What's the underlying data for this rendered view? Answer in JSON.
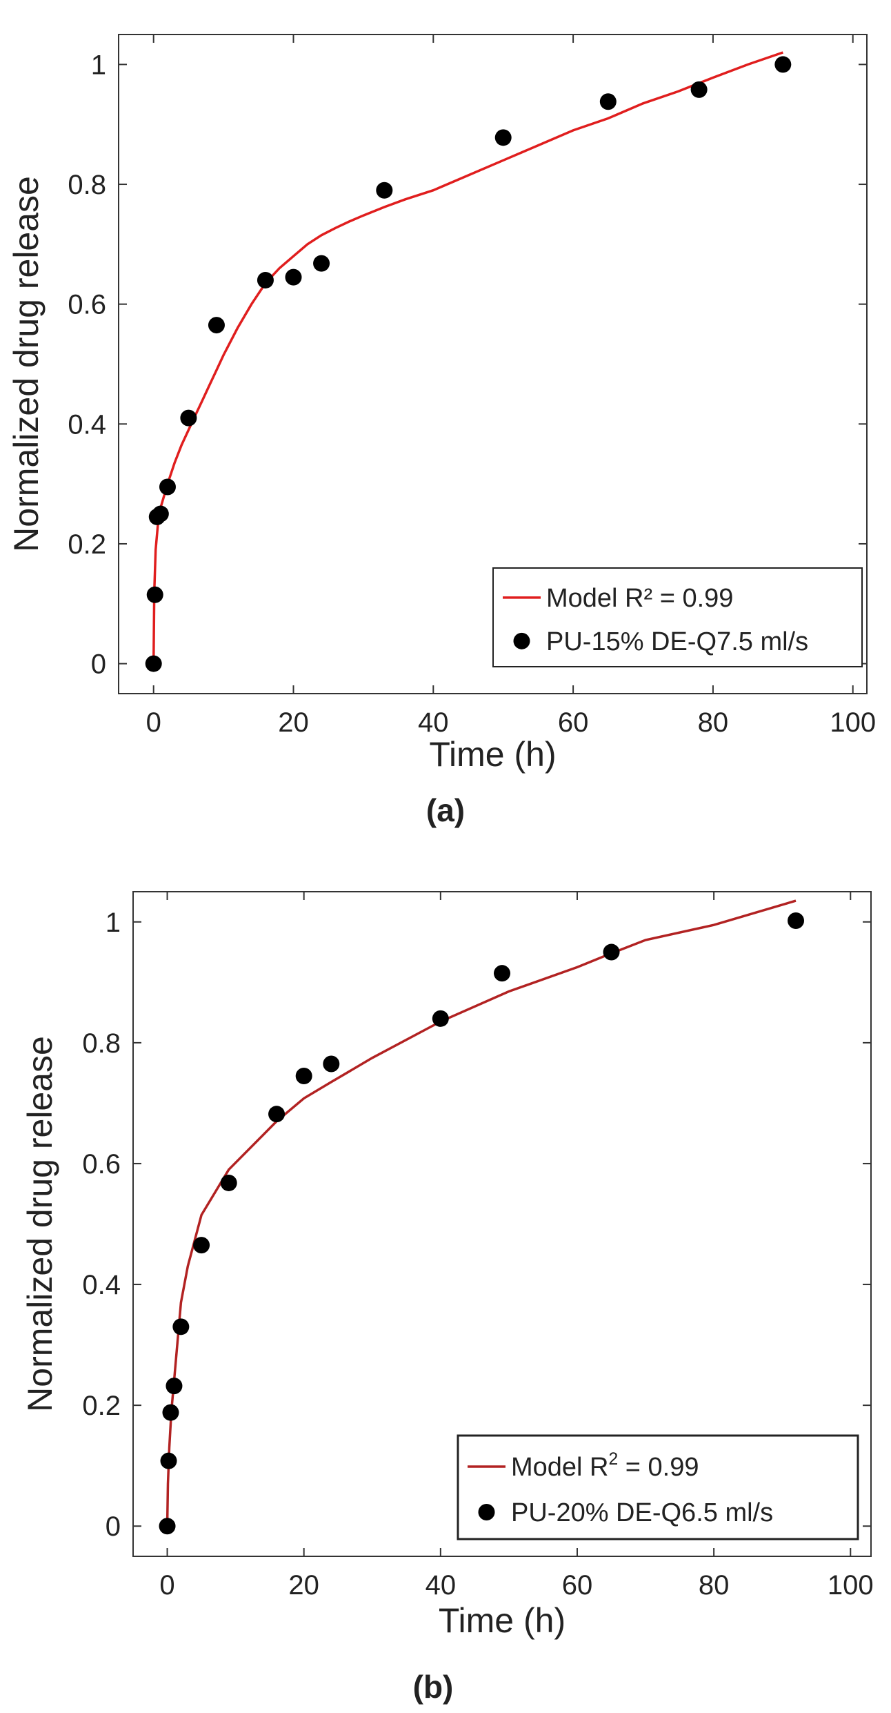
{
  "chart_data": [
    {
      "type": "scatter",
      "panel_label": "(a)",
      "xlabel": "Time (h)",
      "ylabel": "Normalized drug release",
      "xlim": [
        -5,
        102
      ],
      "ylim": [
        -0.05,
        1.05
      ],
      "xticks": [
        0,
        20,
        40,
        60,
        80,
        100
      ],
      "yticks": [
        0,
        0.2,
        0.4,
        0.6,
        0.8,
        1
      ],
      "ytick_labels": [
        "0",
        "0.2",
        "0.4",
        "0.6",
        "0.8",
        "1"
      ],
      "grid": false,
      "legend_position": "bottom-right",
      "series": [
        {
          "name": "Model R² = 0.99",
          "kind": "line",
          "color": "#e01e1e",
          "x": [
            0,
            0.1,
            0.3,
            0.6,
            1,
            1.5,
            2,
            3,
            4,
            5,
            6,
            7,
            8,
            9,
            10,
            12,
            14,
            16,
            18,
            20,
            22,
            24,
            26,
            28,
            30,
            33,
            36,
            40,
            45,
            50,
            55,
            60,
            65,
            70,
            75,
            80,
            85,
            90
          ],
          "y": [
            0,
            0.12,
            0.19,
            0.23,
            0.26,
            0.28,
            0.3,
            0.335,
            0.365,
            0.39,
            0.415,
            0.44,
            0.465,
            0.49,
            0.515,
            0.56,
            0.6,
            0.635,
            0.66,
            0.68,
            0.7,
            0.715,
            0.727,
            0.738,
            0.748,
            0.762,
            0.775,
            0.79,
            0.815,
            0.84,
            0.865,
            0.89,
            0.91,
            0.935,
            0.955,
            0.978,
            1.0,
            1.02
          ]
        },
        {
          "name": "PU-15% DE-Q7.5 ml/s",
          "kind": "scatter",
          "color": "#000000",
          "x": [
            0,
            0.2,
            0.5,
            1,
            2,
            5,
            9,
            16,
            20,
            24,
            33,
            50,
            65,
            78,
            90
          ],
          "y": [
            0,
            0.115,
            0.245,
            0.25,
            0.295,
            0.41,
            0.565,
            0.64,
            0.645,
            0.668,
            0.79,
            0.878,
            0.938,
            0.958,
            1.0
          ]
        }
      ]
    },
    {
      "type": "scatter",
      "panel_label": "(b)",
      "xlabel": "Time (h)",
      "ylabel": "Normalized drug release",
      "xlim": [
        -5,
        103
      ],
      "ylim": [
        -0.05,
        1.05
      ],
      "xticks": [
        0,
        20,
        40,
        60,
        80,
        100
      ],
      "yticks": [
        0,
        0.2,
        0.4,
        0.6,
        0.8,
        1
      ],
      "ytick_labels": [
        "0",
        "0.2",
        "0.4",
        "0.6",
        "0.8",
        "1"
      ],
      "grid": false,
      "legend_position": "bottom-right",
      "series": [
        {
          "name": "Model R",
          "name_sup": "2",
          "name_suffix": " = 0.99",
          "kind": "line",
          "color": "#b22222",
          "x": [
            0,
            0.1,
            0.3,
            0.6,
            1,
            2,
            3,
            5,
            9,
            16,
            20,
            24,
            30,
            40,
            50,
            60,
            65,
            70,
            80,
            92
          ],
          "y": [
            0,
            0.07,
            0.13,
            0.19,
            0.24,
            0.37,
            0.43,
            0.515,
            0.59,
            0.67,
            0.708,
            0.735,
            0.775,
            0.835,
            0.885,
            0.925,
            0.948,
            0.97,
            0.995,
            1.035
          ]
        },
        {
          "name": "PU-20% DE-Q6.5 ml/s",
          "kind": "scatter",
          "color": "#000000",
          "x": [
            0,
            0.2,
            0.5,
            1,
            2,
            5,
            9,
            16,
            20,
            24,
            40,
            49,
            65,
            92
          ],
          "y": [
            0,
            0.108,
            0.188,
            0.232,
            0.33,
            0.465,
            0.568,
            0.682,
            0.745,
            0.765,
            0.84,
            0.915,
            0.95,
            1.002
          ]
        }
      ]
    }
  ]
}
